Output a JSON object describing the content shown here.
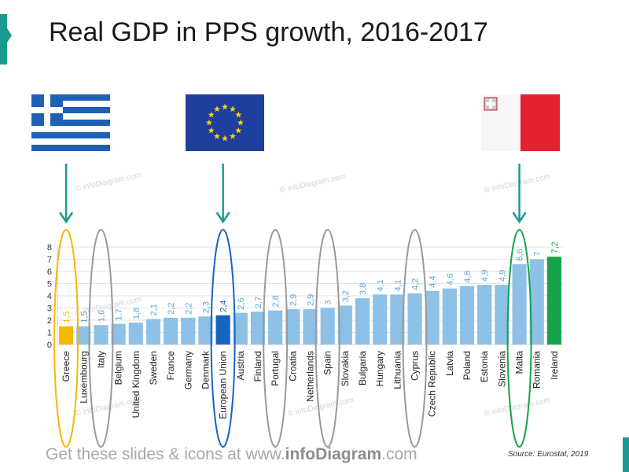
{
  "page": {
    "title": "Real GDP in PPS growth, 2016-2017",
    "footer_prefix": "Get these slides & icons at www.",
    "footer_brand": "infoDiagram",
    "footer_suffix": ".com",
    "source": "Source: Eurostat, 2019",
    "watermark": "© infoDiagram.com"
  },
  "flags": [
    {
      "name": "greece-flag",
      "highlight": "Greece"
    },
    {
      "name": "eu-flag",
      "highlight": "European Union"
    },
    {
      "name": "malta-flag",
      "highlight": "Malta"
    }
  ],
  "colors": {
    "default_bar": "#8ec1e6",
    "default_label": "#5ea6d8",
    "greece": "#f5b800",
    "eu": "#1565c0",
    "ireland": "#16a34a",
    "oval_gray": "#9a9a9a",
    "arrow": "#1a9a8f"
  },
  "chart_data": {
    "type": "bar",
    "title": "Real GDP in PPS growth, 2016-2017",
    "xlabel": "",
    "ylabel": "",
    "ylim": [
      0,
      8
    ],
    "yticks": [
      "0",
      "1",
      "2",
      "3",
      "4",
      "5",
      "6",
      "7",
      "8"
    ],
    "grid": true,
    "categories": [
      "Greece",
      "Luxembourg",
      "Italy",
      "Belgium",
      "United Kingdom",
      "Sweden",
      "France",
      "Germany",
      "Denmark",
      "European Union",
      "Austria",
      "Finland",
      "Portugal",
      "Croatia",
      "Netherlands",
      "Spain",
      "Slovakia",
      "Bulgaria",
      "Hungary",
      "Lithuania",
      "Cyprus",
      "Czech Republic",
      "Latvia",
      "Poland",
      "Estonia",
      "Slovenia",
      "Malta",
      "Romania",
      "Ireland"
    ],
    "values": [
      1.5,
      1.5,
      1.6,
      1.7,
      1.8,
      2.1,
      2.2,
      2.2,
      2.3,
      2.4,
      2.6,
      2.7,
      2.8,
      2.9,
      2.9,
      3,
      3.2,
      3.8,
      4.1,
      4.1,
      4.2,
      4.4,
      4.6,
      4.8,
      4.9,
      4.9,
      6.6,
      7,
      7.2
    ],
    "value_labels": [
      "1,5",
      "1,5",
      "1,6",
      "1,7",
      "1,8",
      "2,1",
      "2,2",
      "2,2",
      "2,3",
      "2,4",
      "2,6",
      "2,7",
      "2,8",
      "2,9",
      "2,9",
      "3",
      "3,2",
      "3,8",
      "4,1",
      "4,1",
      "4,2",
      "4,4",
      "4,6",
      "4,8",
      "4,9",
      "4,9",
      "6,6",
      "7",
      "7,2"
    ],
    "highlighted": {
      "Greece": "#f5b800",
      "European Union": "#1565c0",
      "Ireland": "#16a34a"
    },
    "circled": [
      "Greece",
      "Italy",
      "European Union",
      "Portugal",
      "Spain",
      "Cyprus",
      "Malta"
    ]
  }
}
